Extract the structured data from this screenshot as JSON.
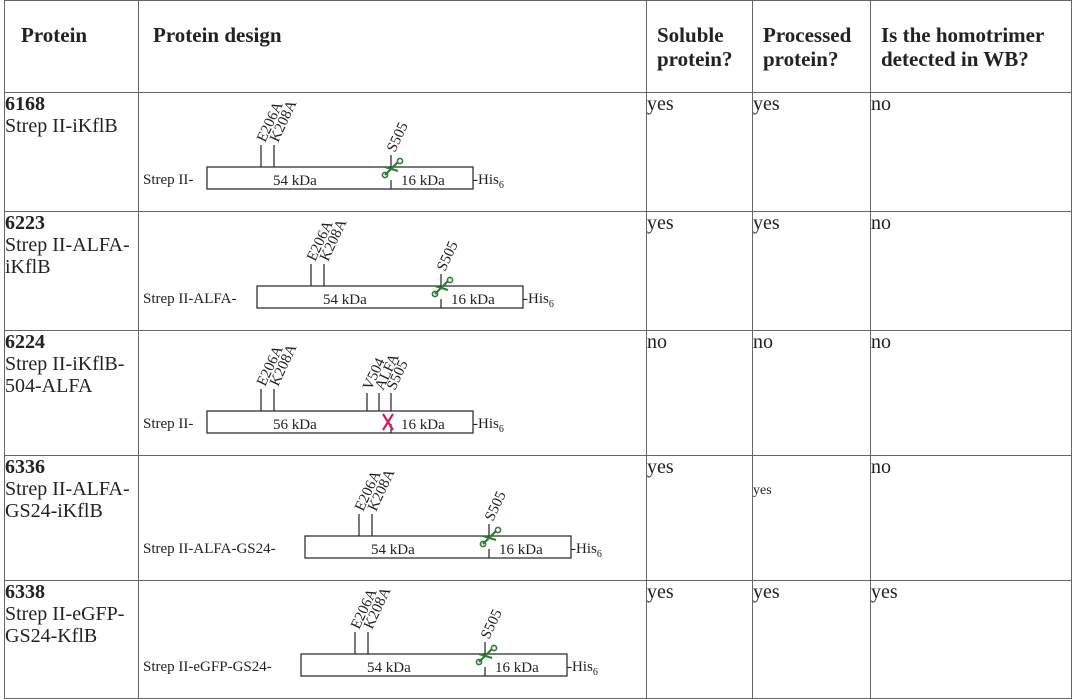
{
  "header": {
    "protein": "Protein",
    "design": "Protein design",
    "soluble": [
      "Soluble",
      "protein?"
    ],
    "processed": [
      "Processed",
      "protein?"
    ],
    "homotrimer": [
      "Is the homotrimer",
      "detected in WB?"
    ]
  },
  "rows": [
    {
      "id": "6168",
      "name": [
        "Strep II-iKflB"
      ],
      "soluble": "yes",
      "processed": "yes",
      "homotrimer": "no",
      "design": {
        "prefix": "Strep II-",
        "mutations": [
          "E206A",
          "K208A"
        ],
        "site": "S505",
        "left_size": "54 kDa",
        "right_size": "16 kDa",
        "suffix": "-His",
        "suffix_sub": "6",
        "cleavage": "scissors"
      }
    },
    {
      "id": "6223",
      "name": [
        "Strep II-ALFA-",
        "iKflB"
      ],
      "soluble": "yes",
      "processed": "yes",
      "homotrimer": "no",
      "design": {
        "prefix": "Strep II-ALFA-",
        "mutations": [
          "E206A",
          "K208A"
        ],
        "site": "S505",
        "left_size": "54 kDa",
        "right_size": "16 kDa",
        "suffix": "-His",
        "suffix_sub": "6",
        "cleavage": "scissors"
      }
    },
    {
      "id": "6224",
      "name": [
        "Strep II-iKflB-",
        "504-ALFA"
      ],
      "soluble": "no",
      "processed": "no",
      "homotrimer": "no",
      "design": {
        "prefix": "Strep II-",
        "mutations": [
          "E206A",
          "K208A"
        ],
        "insert_labels": [
          "V504",
          "ALFA",
          "S505"
        ],
        "left_size": "56 kDa",
        "right_size": "16 kDa",
        "suffix": "-His",
        "suffix_sub": "6",
        "cleavage": "blocked"
      }
    },
    {
      "id": "6336",
      "name": [
        "Strep II-ALFA-",
        "GS24-iKflB"
      ],
      "soluble": "yes",
      "processed": "yes",
      "processed_small": true,
      "homotrimer": "no",
      "design": {
        "prefix": "Strep II-ALFA-GS24-",
        "mutations": [
          "E206A",
          "K208A"
        ],
        "site": "S505",
        "left_size": "54 kDa",
        "right_size": "16 kDa",
        "suffix": "-His",
        "suffix_sub": "6",
        "cleavage": "scissors"
      }
    },
    {
      "id": "6338",
      "name": [
        "Strep II-eGFP-",
        "GS24-KflB"
      ],
      "soluble": "yes",
      "processed": "yes",
      "homotrimer": "yes",
      "design": {
        "prefix": "Strep II-eGFP-GS24-",
        "mutations": [
          "E206A",
          "K208A"
        ],
        "site": "S505",
        "left_size": "54 kDa",
        "right_size": "16 kDa",
        "suffix": "-His",
        "suffix_sub": "6",
        "cleavage": "scissors"
      }
    }
  ],
  "colors": {
    "scissors": "#2e7d32",
    "blocked": "#d81b60",
    "line": "#222222",
    "border": "#666666"
  }
}
